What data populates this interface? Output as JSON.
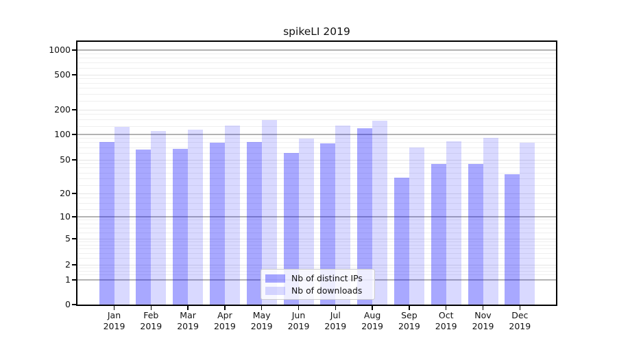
{
  "title": "spikeLI 2019",
  "chart_data": {
    "type": "bar",
    "title": "spikeLI 2019",
    "categories": [
      "Jan",
      "Feb",
      "Mar",
      "Apr",
      "May",
      "Jun",
      "Jul",
      "Aug",
      "Sep",
      "Oct",
      "Nov",
      "Dec"
    ],
    "category_year": "2019",
    "series": [
      {
        "name": "Nb of distinct IPs",
        "color": "rgba(0,0,255,0.34)",
        "values": [
          81,
          66,
          68,
          80,
          81,
          60,
          78,
          120,
          31,
          45,
          45,
          34
        ]
      },
      {
        "name": "Nb of downloads",
        "color": "rgba(0,0,255,0.15)",
        "values": [
          124,
          110,
          114,
          128,
          150,
          89,
          128,
          146,
          70,
          83,
          91,
          80
        ]
      }
    ],
    "y_axis": {
      "scale": "symlog",
      "major_ticks": [
        0,
        1,
        2,
        5,
        10,
        20,
        50,
        100,
        200,
        500,
        1000
      ],
      "minor_ticks": [
        1.25,
        1.5,
        1.75,
        2.5,
        3,
        3.5,
        4,
        4.5,
        6,
        7,
        8,
        9,
        12.5,
        15,
        17.5,
        25,
        30,
        35,
        40,
        45,
        60,
        70,
        80,
        90,
        125,
        150,
        175,
        250,
        300,
        350,
        400,
        450,
        600,
        700,
        800,
        900
      ],
      "ylim": [
        0,
        1250
      ]
    },
    "grid": true,
    "legend_position": "lower center"
  },
  "colors": {
    "background": "#ffffff",
    "bar_ips": "rgba(0,0,255,0.34)",
    "bar_downloads": "rgba(0,0,255,0.15)",
    "grid_major_power10": "#b2b2b2",
    "grid_major_other": "#e4e4e4",
    "grid_minor": "#efefef",
    "axis": "#000000",
    "text": "#111111",
    "legend_border": "#cccccc",
    "legend_bg": "rgba(255,255,255,0.8)"
  }
}
